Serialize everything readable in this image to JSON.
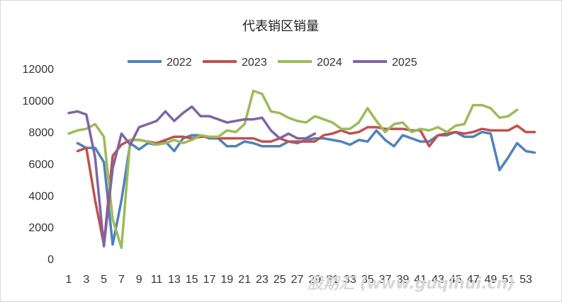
{
  "chart_data": {
    "type": "line",
    "title": "代表销区销量",
    "ylim": [
      0,
      12000
    ],
    "y_ticks": [
      "0",
      "2000",
      "4000",
      "6000",
      "8000",
      "10000",
      "12000"
    ],
    "x_ticks": [
      "1",
      "3",
      "5",
      "7",
      "9",
      "11",
      "13",
      "15",
      "17",
      "19",
      "21",
      "23",
      "25",
      "27",
      "29",
      "31",
      "33",
      "35",
      "37",
      "39",
      "41",
      "43",
      "45",
      "47",
      "49",
      "51",
      "53"
    ],
    "grid": false,
    "legend_position": "top",
    "series": [
      {
        "name": "2022",
        "color": "#4f81bd",
        "start_week": 2,
        "values": [
          7300,
          7000,
          7000,
          6100,
          900,
          3700,
          7300,
          6900,
          7300,
          7200,
          7400,
          6800,
          7600,
          7800,
          7800,
          7600,
          7600,
          7100,
          7100,
          7400,
          7300,
          7100,
          7100,
          7100,
          7400,
          7300,
          7500,
          7600,
          7600,
          7500,
          7400,
          7200,
          7500,
          7400,
          8100,
          7500,
          7100,
          7800,
          7600,
          7400,
          7400,
          7800,
          7800,
          8000,
          7700,
          7700,
          8000,
          7900,
          5600,
          6400,
          7300,
          6800,
          6700
        ]
      },
      {
        "name": "2023",
        "color": "#c0504d",
        "start_week": 2,
        "values": [
          6800,
          7000,
          3700,
          900,
          6500,
          7200,
          7500,
          7500,
          7400,
          7300,
          7500,
          7700,
          7700,
          7600,
          7700,
          7700,
          7600,
          7600,
          7600,
          7600,
          7600,
          7400,
          7400,
          7600,
          7400,
          7400,
          7400,
          7400,
          7800,
          7900,
          8100,
          7900,
          8000,
          8300,
          8300,
          8200,
          8200,
          8200,
          8100,
          8100,
          7100,
          7800,
          7900,
          8000,
          7900,
          8000,
          8200,
          8100,
          8100,
          8100,
          8400,
          8000,
          8000
        ]
      },
      {
        "name": "2024",
        "color": "#9bbb59",
        "start_week": 1,
        "values": [
          7900,
          8100,
          8200,
          8500,
          7700,
          2500,
          700,
          7500,
          7500,
          7400,
          7200,
          7300,
          7500,
          7300,
          7500,
          7800,
          7700,
          7700,
          8100,
          8000,
          8500,
          10600,
          10400,
          9300,
          9200,
          8900,
          8700,
          8600,
          9000,
          8800,
          8600,
          8200,
          8200,
          8600,
          9500,
          8700,
          8000,
          8500,
          8600,
          8000,
          8200,
          8100,
          8300,
          8000,
          8400,
          8500,
          9700,
          9700,
          9500,
          8900,
          9000,
          9400
        ]
      },
      {
        "name": "2025",
        "color": "#8064a2",
        "start_week": 1,
        "values": [
          9200,
          9300,
          9100,
          6400,
          800,
          5700,
          7900,
          7200,
          8300,
          8500,
          8700,
          9300,
          8700,
          9200,
          9600,
          9000,
          9000,
          8800,
          8600,
          8700,
          8800,
          8800,
          8900,
          8100,
          7600,
          7900,
          7600,
          7600,
          7900
        ]
      }
    ]
  },
  "watermark": "股期汇 (www.guqihui.cn)"
}
